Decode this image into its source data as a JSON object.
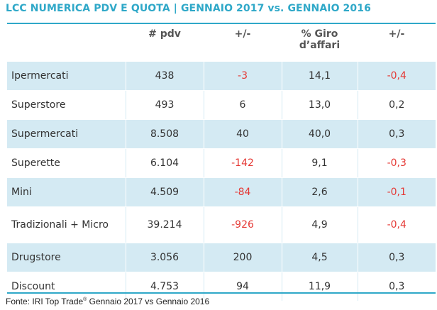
{
  "title": "LCC NUMERICA PDV E QUOTA | GENNAIO 2017 vs. GENNAIO 2016",
  "columns": {
    "label": "",
    "pdv": "# pdv",
    "pdv_delta": "+/-",
    "giro_line1": "% Giro",
    "giro_line2": "d’affari",
    "giro_delta": "+/-"
  },
  "rows": [
    {
      "label": "Ipermercati",
      "pdv": "438",
      "pdv_delta": "-3",
      "pdv_delta_negative": true,
      "giro": "14,1",
      "giro_delta": "-0,4",
      "giro_delta_negative": true,
      "shaded": true
    },
    {
      "label": "Superstore",
      "pdv": "493",
      "pdv_delta": "6",
      "pdv_delta_negative": false,
      "giro": "13,0",
      "giro_delta": "0,2",
      "giro_delta_negative": false,
      "shaded": false
    },
    {
      "label": "Supermercati",
      "pdv": "8.508",
      "pdv_delta": "40",
      "pdv_delta_negative": false,
      "giro": "40,0",
      "giro_delta": "0,3",
      "giro_delta_negative": false,
      "shaded": true
    },
    {
      "label": "Superette",
      "pdv": "6.104",
      "pdv_delta": "-142",
      "pdv_delta_negative": true,
      "giro": "9,1",
      "giro_delta": "-0,3",
      "giro_delta_negative": true,
      "shaded": false
    },
    {
      "label": "Mini",
      "pdv": "4.509",
      "pdv_delta": "-84",
      "pdv_delta_negative": true,
      "giro": "2,6",
      "giro_delta": "-0,1",
      "giro_delta_negative": true,
      "shaded": true
    },
    {
      "label": "Tradizionali + Micro",
      "pdv": "39.214",
      "pdv_delta": "-926",
      "pdv_delta_negative": true,
      "giro": "4,9",
      "giro_delta": "-0,4",
      "giro_delta_negative": true,
      "shaded": false
    },
    {
      "label": "Drugstore",
      "pdv": "3.056",
      "pdv_delta": "200",
      "pdv_delta_negative": false,
      "giro": "4,5",
      "giro_delta": "0,3",
      "giro_delta_negative": false,
      "shaded": true
    },
    {
      "label": "Discount",
      "pdv": "4.753",
      "pdv_delta": "94",
      "pdv_delta_negative": false,
      "giro": "11,9",
      "giro_delta": "0,3",
      "giro_delta_negative": false,
      "shaded": false
    }
  ],
  "source": {
    "prefix": "Fonte: IRI Top Trade",
    "mark": "®",
    "suffix": " Gennaio 2017 vs Gennaio 2016"
  },
  "colors": {
    "accent": "#2fa8c8",
    "row_shade": "#d4eaf3",
    "negative": "#e53935",
    "text": "#333333"
  }
}
